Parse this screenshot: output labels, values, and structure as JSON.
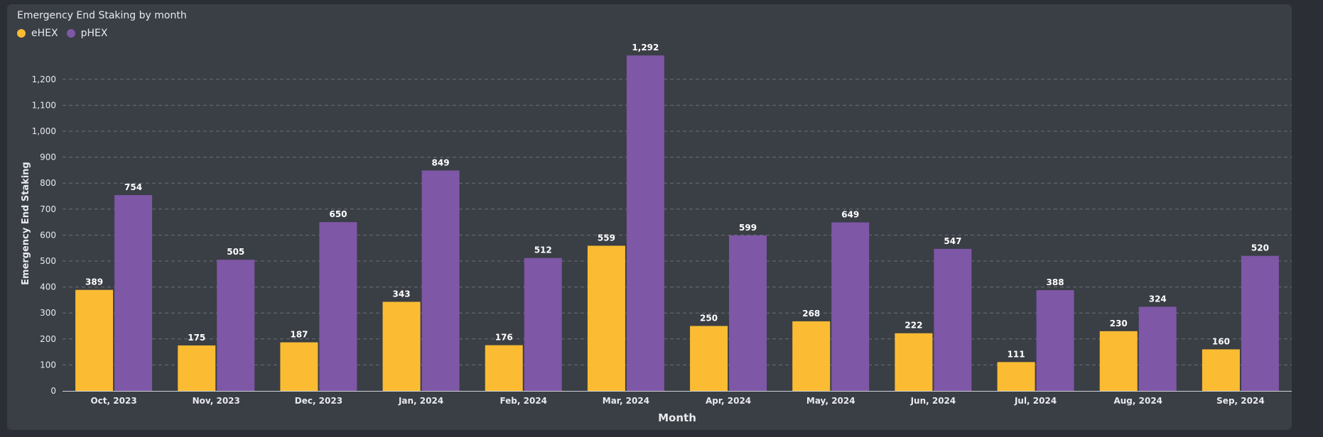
{
  "chart_data": {
    "type": "bar",
    "title": "Emergency End Staking by month",
    "xlabel": "Month",
    "ylabel": "Emergency End Staking",
    "categories": [
      "Oct, 2023",
      "Nov, 2023",
      "Dec, 2023",
      "Jan, 2024",
      "Feb, 2024",
      "Mar, 2024",
      "Apr, 2024",
      "May, 2024",
      "Jun, 2024",
      "Jul, 2024",
      "Aug, 2024",
      "Sep, 2024"
    ],
    "series": [
      {
        "name": "eHEX",
        "color": "#fbbc33",
        "values": [
          389,
          175,
          187,
          343,
          176,
          559,
          250,
          268,
          222,
          111,
          230,
          160
        ]
      },
      {
        "name": "pHEX",
        "color": "#7e57a6",
        "values": [
          754,
          505,
          650,
          849,
          512,
          1292,
          599,
          649,
          547,
          388,
          324,
          520
        ]
      }
    ],
    "ylim": [
      0,
      1300
    ],
    "yticks": [
      0,
      100,
      200,
      300,
      400,
      500,
      600,
      700,
      800,
      900,
      1000,
      1100,
      1200
    ],
    "grid": true,
    "legend": "top-left"
  }
}
